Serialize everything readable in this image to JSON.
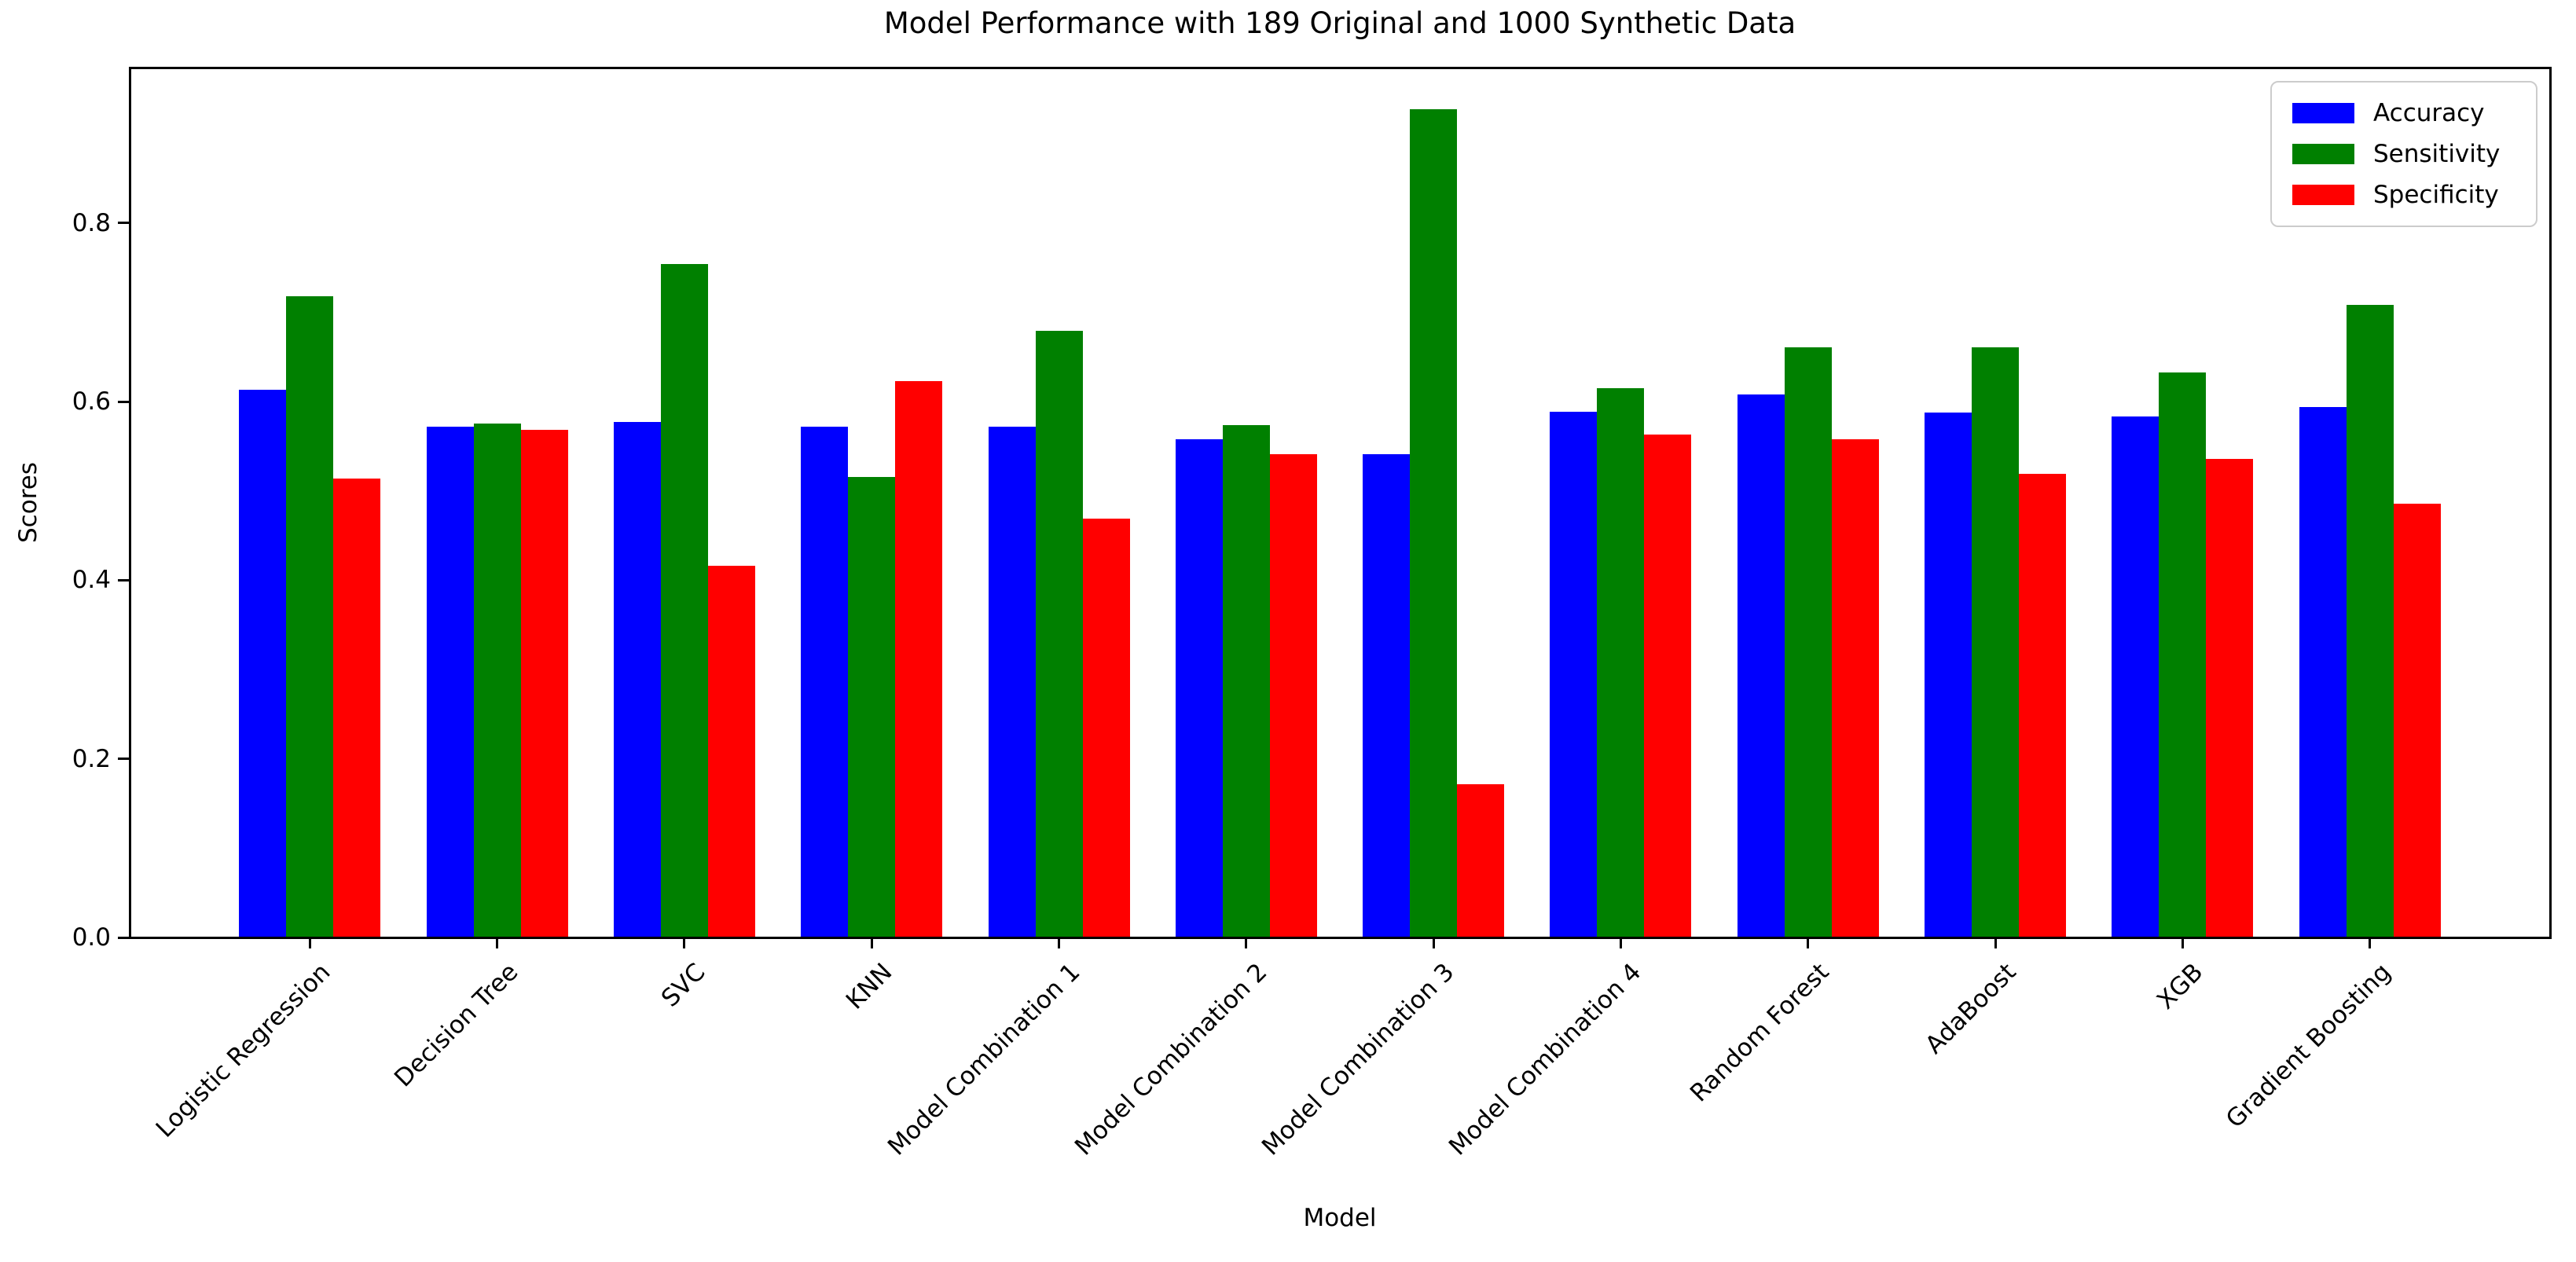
{
  "figure": {
    "title": "Model Performance with 189 Original and 1000 Synthetic Data",
    "xlabel": "Model",
    "ylabel": "Scores"
  },
  "legend": {
    "position": "upper right",
    "items": [
      {
        "label": "Accuracy",
        "color": "#0000ff"
      },
      {
        "label": "Sensitivity",
        "color": "#008000"
      },
      {
        "label": "Specificity",
        "color": "#ff0000"
      }
    ]
  },
  "chart_data": {
    "type": "bar",
    "title": "Model Performance with 189 Original and 1000 Synthetic Data",
    "xlabel": "Model",
    "ylabel": "Scores",
    "categories": [
      "Logistic Regression",
      "Decision Tree",
      "SVC",
      "KNN",
      "Model Combination 1",
      "Model Combination 2",
      "Model Combination 3",
      "Model Combination 4",
      "Random Forest",
      "AdaBoost",
      "XGB",
      "Gradient Boosting"
    ],
    "series": [
      {
        "name": "Accuracy",
        "color": "#0000ff",
        "values": [
          0.613,
          0.572,
          0.577,
          0.572,
          0.572,
          0.558,
          0.541,
          0.589,
          0.608,
          0.588,
          0.583,
          0.594
        ]
      },
      {
        "name": "Sensitivity",
        "color": "#008000",
        "values": [
          0.718,
          0.575,
          0.754,
          0.516,
          0.679,
          0.574,
          0.927,
          0.615,
          0.661,
          0.661,
          0.633,
          0.708
        ]
      },
      {
        "name": "Specificity",
        "color": "#ff0000",
        "values": [
          0.514,
          0.568,
          0.416,
          0.623,
          0.469,
          0.541,
          0.172,
          0.563,
          0.558,
          0.519,
          0.536,
          0.486
        ]
      }
    ],
    "yticks": [
      0.0,
      0.2,
      0.4,
      0.6,
      0.8
    ],
    "ytick_labels": [
      "0.0",
      "0.2",
      "0.4",
      "0.6",
      "0.8"
    ],
    "ylim": [
      0,
      0.974
    ],
    "grid": false,
    "background": "#ffffff",
    "legend_position": "upper right",
    "xtick_rotation": 45
  }
}
